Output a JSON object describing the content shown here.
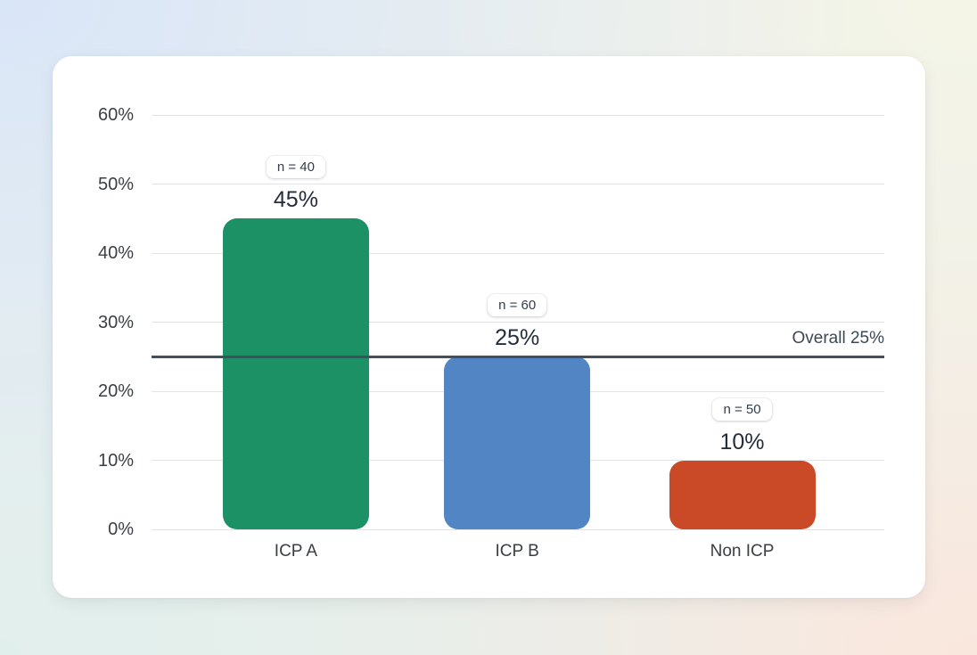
{
  "chart_data": {
    "type": "bar",
    "title": "",
    "xlabel": "",
    "ylabel": "",
    "categories": [
      "ICP A",
      "ICP B",
      "Non ICP"
    ],
    "values": [
      45,
      25,
      10
    ],
    "value_labels": [
      "45%",
      "25%",
      "10%"
    ],
    "sample_size_labels": [
      "n = 40",
      "n = 60",
      "n = 50"
    ],
    "bar_colors": [
      "#1d9166",
      "#5285c4",
      "#ca4a27"
    ],
    "ylim": [
      0,
      60
    ],
    "ytick_values": [
      0,
      10,
      20,
      30,
      40,
      50,
      60
    ],
    "ytick_labels": [
      "0%",
      "10%",
      "20%",
      "30%",
      "40%",
      "50%",
      "60%"
    ],
    "grid": true,
    "legend": false,
    "reference_line": {
      "value": 25,
      "label": "Overall 25%",
      "color": "#434e5e"
    }
  },
  "theme": {
    "card_background": "#ffffff",
    "gridline_color": "#e3e3e6",
    "background_corner_top_left": "#d9e6f8",
    "background_corner_top_right": "#f4f4e7",
    "background_corner_bottom_left": "#e1efec",
    "background_corner_bottom_right": "#f9e7dd"
  }
}
